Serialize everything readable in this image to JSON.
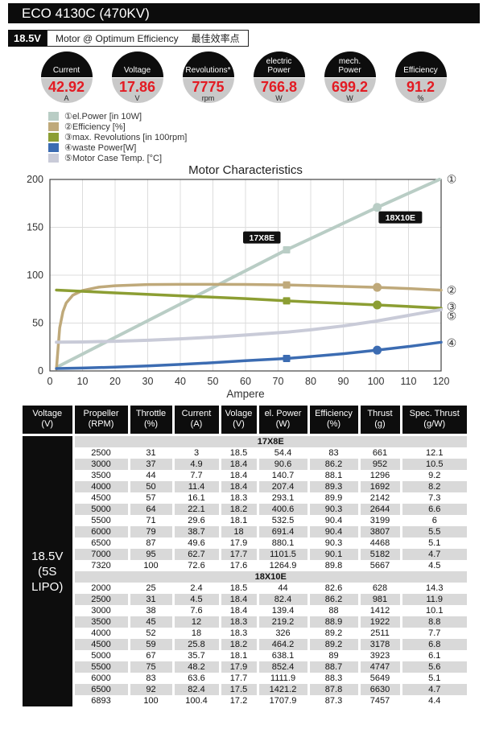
{
  "header": {
    "title": "ECO 4130C (470KV)"
  },
  "subheader": {
    "voltage": "18.5V",
    "label_en": "Motor @ Optimum Efficiency",
    "label_zh": "最佳效率点"
  },
  "badges": [
    {
      "label_lines": [
        "Current"
      ],
      "value": "42.92",
      "unit": "A"
    },
    {
      "label_lines": [
        "Voltage"
      ],
      "value": "17.86",
      "unit": "V"
    },
    {
      "label_lines": [
        "Revolutions*"
      ],
      "value": "7775",
      "unit": "rpm"
    },
    {
      "label_lines": [
        "electric",
        "Power"
      ],
      "value": "766.8",
      "unit": "W"
    },
    {
      "label_lines": [
        "mech.",
        "Power"
      ],
      "value": "699.2",
      "unit": "W"
    },
    {
      "label_lines": [
        "Efficiency"
      ],
      "value": "91.2",
      "unit": "%"
    }
  ],
  "colors": {
    "accent_red": "#e31b23",
    "bar_black": "#0d0d0d",
    "badge_gray": "#c9c9c9",
    "row_gray": "#d9d9d9"
  },
  "chart_data": {
    "type": "line",
    "title": "Motor Characteristics",
    "xlabel": "Ampere",
    "xlim": [
      0,
      120
    ],
    "ylim": [
      0,
      200
    ],
    "xticks": [
      0,
      10,
      20,
      30,
      40,
      50,
      60,
      70,
      80,
      90,
      100,
      110,
      120
    ],
    "yticks": [
      0,
      50,
      100,
      150,
      200
    ],
    "grid": true,
    "legend_position": "top-left",
    "legend": [
      {
        "num": "①",
        "label": "el.Power [in 10W]",
        "color": "#b9cdc5"
      },
      {
        "num": "②",
        "label": "Efficiency [%]",
        "color": "#bfa97a"
      },
      {
        "num": "③",
        "label": "max. Revolutions [in 100rpm]",
        "color": "#8c9e33"
      },
      {
        "num": "④",
        "label": "waste Power[W]",
        "color": "#3c6cb2"
      },
      {
        "num": "⑤",
        "label": "Motor Case Temp. [°C]",
        "color": "#c9cbd8"
      }
    ],
    "series": [
      {
        "name": "el.Power [in 10W]",
        "ref": "①",
        "ref_y": 200,
        "color": "#b9cdc5",
        "width": 4,
        "x": [
          2.4,
          72.6,
          100.4,
          119.5
        ],
        "y": [
          4.4,
          126.5,
          170.8,
          200
        ]
      },
      {
        "name": "Efficiency [%]",
        "ref": "②",
        "ref_y": 84,
        "color": "#bfa97a",
        "width": 3.5,
        "x": [
          2,
          3,
          4,
          5,
          7,
          10,
          15,
          20,
          30,
          40,
          50,
          60,
          72.6,
          85,
          100.4,
          110,
          120
        ],
        "y": [
          2,
          45,
          62,
          71,
          79,
          84,
          87.5,
          89,
          90.2,
          90.4,
          90.4,
          90.3,
          89.8,
          88.8,
          87.3,
          86,
          84.3
        ]
      },
      {
        "name": "max. Revolutions [in 100rpm]",
        "ref": "③",
        "ref_y": 67,
        "color": "#8c9e33",
        "width": 3.5,
        "x": [
          2,
          20,
          40,
          60,
          72.6,
          85,
          100.4,
          110,
          120
        ],
        "y": [
          84.5,
          81.5,
          78.5,
          75.5,
          73.2,
          71.2,
          68.9,
          67.3,
          65.5
        ]
      },
      {
        "name": "waste Power[W]",
        "ref": "④",
        "ref_y": 29,
        "color": "#3c6cb2",
        "width": 3.5,
        "x": [
          2,
          10,
          20,
          30,
          40,
          50,
          60,
          72.6,
          80,
          90,
          100.4,
          110,
          120
        ],
        "y": [
          2.5,
          3,
          4,
          5.3,
          6.8,
          8.6,
          10.7,
          13,
          15,
          18,
          21.7,
          25.5,
          30
        ]
      },
      {
        "name": "Motor Case Temp. [°C]",
        "ref": "⑤",
        "ref_y": 57,
        "color": "#c9cbd8",
        "width": 4,
        "x": [
          2,
          10,
          20,
          30,
          40,
          50,
          60,
          72.6,
          80,
          90,
          100,
          110,
          120
        ],
        "y": [
          30,
          30.3,
          31,
          32,
          33.5,
          35.3,
          37.5,
          40.5,
          43,
          47,
          52,
          58,
          64
        ]
      }
    ],
    "markers": [
      {
        "series": 0,
        "shape": "square",
        "x": 72.6,
        "y": 126.5
      },
      {
        "series": 0,
        "shape": "circle",
        "x": 100.4,
        "y": 170.8
      },
      {
        "series": 1,
        "shape": "square",
        "x": 72.6,
        "y": 89.8
      },
      {
        "series": 1,
        "shape": "circle",
        "x": 100.4,
        "y": 87.3
      },
      {
        "series": 2,
        "shape": "square",
        "x": 72.6,
        "y": 73.2
      },
      {
        "series": 2,
        "shape": "circle",
        "x": 100.4,
        "y": 68.9
      },
      {
        "series": 3,
        "shape": "square",
        "x": 72.6,
        "y": 13
      },
      {
        "series": 3,
        "shape": "circle",
        "x": 100.4,
        "y": 21.7
      }
    ],
    "annotations": [
      {
        "text": "17X8E",
        "x": 65,
        "y": 139
      },
      {
        "text": "18X10E",
        "x": 107.5,
        "y": 160
      }
    ]
  },
  "table": {
    "columns": [
      [
        "Voltage",
        "(V)"
      ],
      [
        "Propeller",
        "(RPM)"
      ],
      [
        "Throttle",
        "(%)"
      ],
      [
        "Current",
        "(A)"
      ],
      [
        "Volage",
        "(V)"
      ],
      [
        "el. Power",
        "(W)"
      ],
      [
        "Efficiency",
        "(%)"
      ],
      [
        "Thrust",
        "(g)"
      ],
      [
        "Spec. Thrust",
        "(g/W)"
      ]
    ],
    "voltage_cell": [
      "18.5V",
      "(5S LIPO)"
    ],
    "sections": [
      {
        "name": "17X8E",
        "rows": [
          [
            "2500",
            "31",
            "3",
            "18.5",
            "54.4",
            "83",
            "661",
            "12.1"
          ],
          [
            "3000",
            "37",
            "4.9",
            "18.4",
            "90.6",
            "86.2",
            "952",
            "10.5"
          ],
          [
            "3500",
            "44",
            "7.7",
            "18.4",
            "140.7",
            "88.1",
            "1296",
            "9.2"
          ],
          [
            "4000",
            "50",
            "11.4",
            "18.4",
            "207.4",
            "89.3",
            "1692",
            "8.2"
          ],
          [
            "4500",
            "57",
            "16.1",
            "18.3",
            "293.1",
            "89.9",
            "2142",
            "7.3"
          ],
          [
            "5000",
            "64",
            "22.1",
            "18.2",
            "400.6",
            "90.3",
            "2644",
            "6.6"
          ],
          [
            "5500",
            "71",
            "29.6",
            "18.1",
            "532.5",
            "90.4",
            "3199",
            "6"
          ],
          [
            "6000",
            "79",
            "38.7",
            "18",
            "691.4",
            "90.4",
            "3807",
            "5.5"
          ],
          [
            "6500",
            "87",
            "49.6",
            "17.9",
            "880.1",
            "90.3",
            "4468",
            "5.1"
          ],
          [
            "7000",
            "95",
            "62.7",
            "17.7",
            "1101.5",
            "90.1",
            "5182",
            "4.7"
          ],
          [
            "7320",
            "100",
            "72.6",
            "17.6",
            "1264.9",
            "89.8",
            "5667",
            "4.5"
          ]
        ]
      },
      {
        "name": "18X10E",
        "rows": [
          [
            "2000",
            "25",
            "2.4",
            "18.5",
            "44",
            "82.6",
            "628",
            "14.3"
          ],
          [
            "2500",
            "31",
            "4.5",
            "18.4",
            "82.4",
            "86.2",
            "981",
            "11.9"
          ],
          [
            "3000",
            "38",
            "7.6",
            "18.4",
            "139.4",
            "88",
            "1412",
            "10.1"
          ],
          [
            "3500",
            "45",
            "12",
            "18.3",
            "219.2",
            "88.9",
            "1922",
            "8.8"
          ],
          [
            "4000",
            "52",
            "18",
            "18.3",
            "326",
            "89.2",
            "2511",
            "7.7"
          ],
          [
            "4500",
            "59",
            "25.8",
            "18.2",
            "464.2",
            "89.2",
            "3178",
            "6.8"
          ],
          [
            "5000",
            "67",
            "35.7",
            "18.1",
            "638.1",
            "89",
            "3923",
            "6.1"
          ],
          [
            "5500",
            "75",
            "48.2",
            "17.9",
            "852.4",
            "88.7",
            "4747",
            "5.6"
          ],
          [
            "6000",
            "83",
            "63.6",
            "17.7",
            "1111.9",
            "88.3",
            "5649",
            "5.1"
          ],
          [
            "6500",
            "92",
            "82.4",
            "17.5",
            "1421.2",
            "87.8",
            "6630",
            "4.7"
          ],
          [
            "6893",
            "100",
            "100.4",
            "17.2",
            "1707.9",
            "87.3",
            "7457",
            "4.4"
          ]
        ]
      }
    ]
  }
}
